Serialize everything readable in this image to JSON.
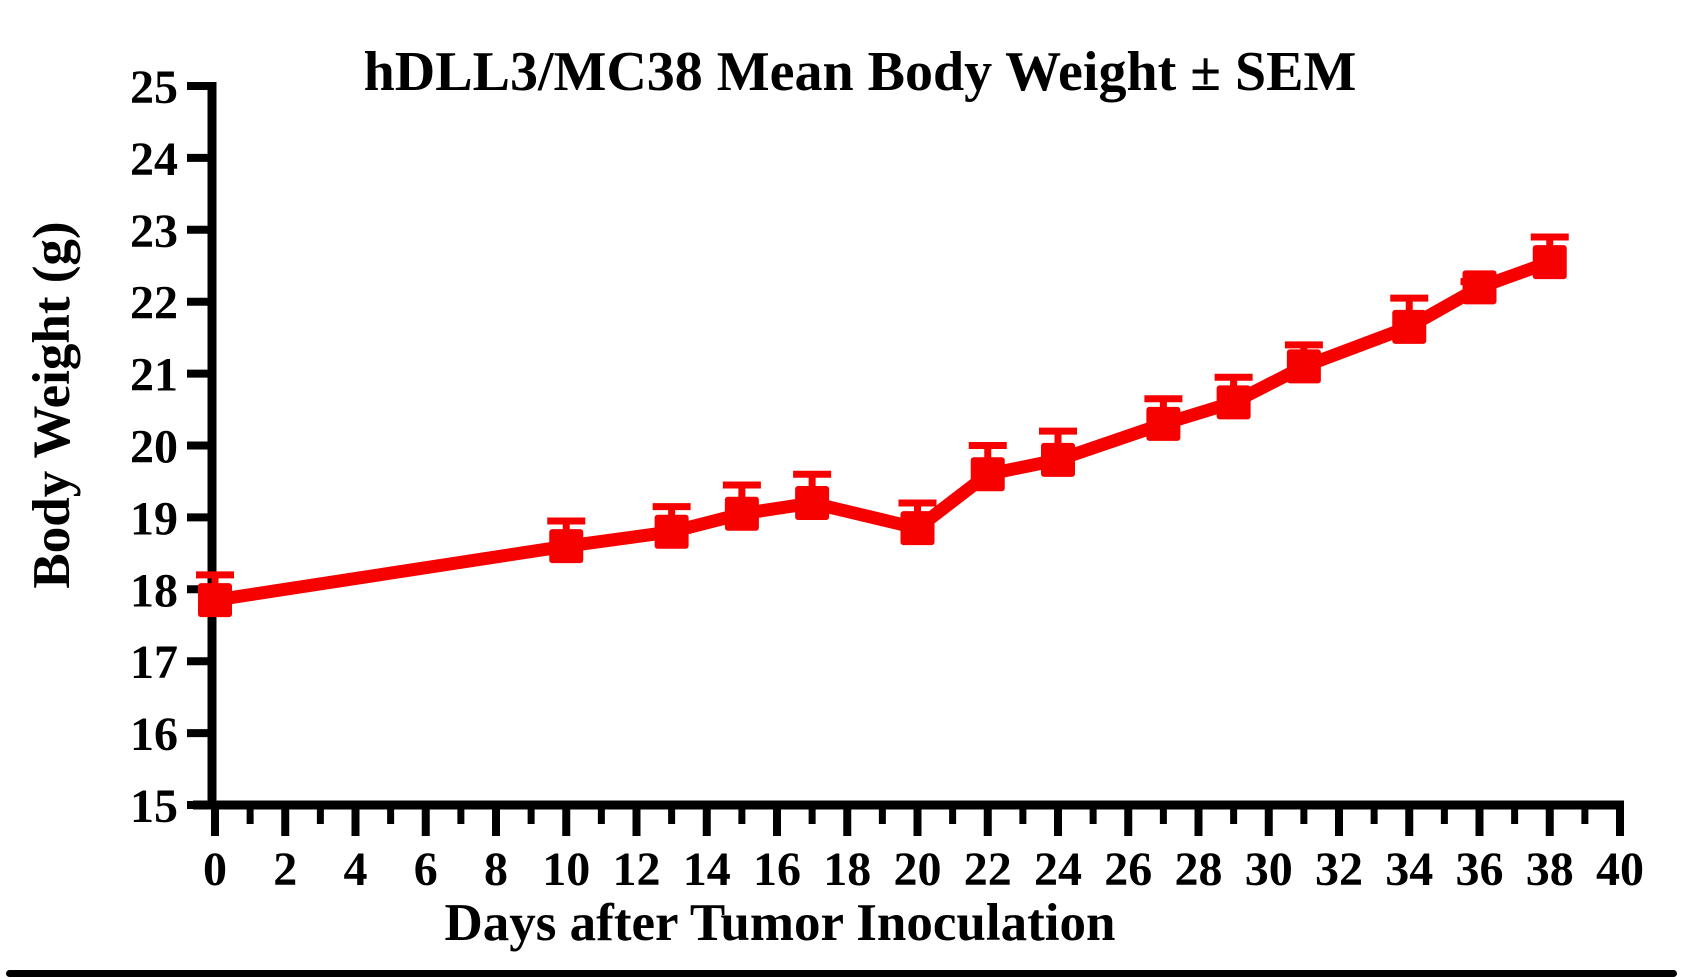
{
  "page": {
    "background": "#ffffff",
    "frame_bar_color": "#000000"
  },
  "chart_data": {
    "type": "line",
    "title": "hDLL3/MC38 Mean Body Weight ± SEM",
    "xlabel": "Days after Tumor Inoculation",
    "ylabel": "Body Weight (g)",
    "x": [
      0,
      10,
      13,
      15,
      17,
      20,
      22,
      24,
      27,
      29,
      31,
      34,
      36,
      38
    ],
    "series": [
      {
        "name": "Mean Body Weight",
        "values": [
          17.85,
          18.6,
          18.8,
          19.05,
          19.2,
          18.85,
          19.6,
          19.8,
          20.3,
          20.6,
          21.1,
          21.65,
          22.2,
          22.55
        ],
        "sem": [
          0.35,
          0.35,
          0.35,
          0.4,
          0.4,
          0.35,
          0.4,
          0.4,
          0.35,
          0.35,
          0.3,
          0.4,
          0.08,
          0.35
        ]
      }
    ],
    "xlim": [
      0,
      40
    ],
    "ylim": [
      15,
      25
    ],
    "x_major_ticks": [
      0,
      2,
      4,
      6,
      8,
      10,
      12,
      14,
      16,
      18,
      20,
      22,
      24,
      26,
      28,
      30,
      32,
      34,
      36,
      38,
      40
    ],
    "x_minor_ticks": [
      1,
      3,
      5,
      7,
      9,
      11,
      13,
      15,
      17,
      19,
      21,
      23,
      25,
      27,
      29,
      31,
      33,
      35,
      37,
      39
    ],
    "y_ticks": [
      15,
      16,
      17,
      18,
      19,
      20,
      21,
      22,
      23,
      24,
      25
    ],
    "line_color": "#f60000",
    "axis_color": "#000000",
    "marker": "square",
    "error_bars": "upper",
    "grid": false,
    "legend_position": "none"
  }
}
